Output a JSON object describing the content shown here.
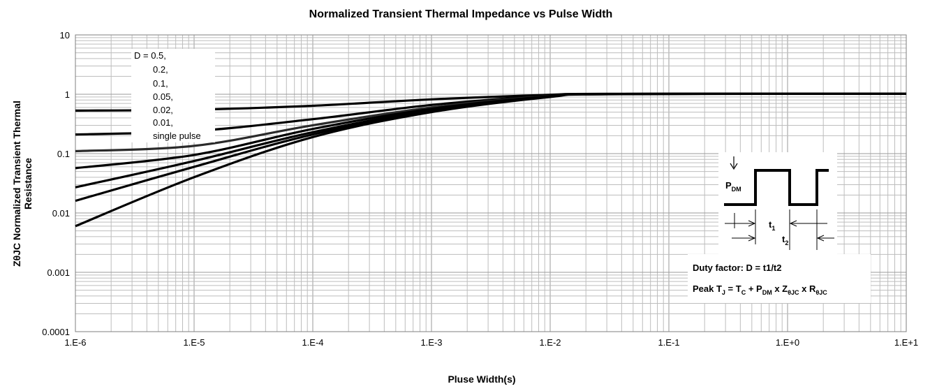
{
  "chart_data": {
    "type": "line",
    "title": "Normalized Transient Thermal Impedance vs Pulse Width",
    "xlabel": "Pluse Width(s)",
    "ylabel": "ZθJC Normalized Transient Thermal Resistance",
    "ylabel_lines": [
      "ZθJC Normalized Transient Thermal",
      "Resistance"
    ],
    "x_scale": "log",
    "y_scale": "log",
    "xlim": [
      1e-06,
      10
    ],
    "ylim": [
      0.0001,
      10
    ],
    "grid": true,
    "x_tick_labels": [
      "1.E-6",
      "1.E-5",
      "1.E-4",
      "1.E-3",
      "1.E-2",
      "1.E-1",
      "1.E+0",
      "1.E+1"
    ],
    "y_tick_labels": [
      "0.0001",
      "0.001",
      "0.01",
      "0.1",
      "1",
      "10"
    ],
    "legend": {
      "placement": "top-left",
      "lines": [
        "D = 0.5,",
        "0.2,",
        "0.1,",
        "0.05,",
        "0.02,",
        "0.01,",
        "single pulse"
      ]
    },
    "series": [
      {
        "name": "D = 0.5",
        "x": [
          1e-06,
          1e-05,
          0.0001,
          0.001,
          0.01,
          0.03,
          10
        ],
        "y": [
          0.53,
          0.55,
          0.64,
          0.82,
          0.98,
          1.02,
          1.02
        ]
      },
      {
        "name": "0.2",
        "x": [
          1e-06,
          1e-05,
          0.0001,
          0.001,
          0.01,
          0.03,
          10
        ],
        "y": [
          0.21,
          0.24,
          0.38,
          0.66,
          0.95,
          1.01,
          1.02
        ]
      },
      {
        "name": "0.1",
        "x": [
          1e-06,
          1e-05,
          0.0001,
          0.001,
          0.01,
          0.03,
          10
        ],
        "y": [
          0.11,
          0.135,
          0.3,
          0.6,
          0.94,
          1.01,
          1.02
        ]
      },
      {
        "name": "0.05",
        "x": [
          1e-06,
          1e-05,
          0.0001,
          0.001,
          0.01,
          0.03,
          10
        ],
        "y": [
          0.057,
          0.095,
          0.26,
          0.57,
          0.93,
          1.01,
          1.02
        ]
      },
      {
        "name": "0.02",
        "x": [
          1e-06,
          1e-05,
          0.0001,
          0.001,
          0.01,
          0.03,
          10
        ],
        "y": [
          0.027,
          0.075,
          0.23,
          0.54,
          0.92,
          1.01,
          1.02
        ]
      },
      {
        "name": "0.01",
        "x": [
          1e-06,
          1e-05,
          0.0001,
          0.001,
          0.01,
          0.03,
          10
        ],
        "y": [
          0.016,
          0.06,
          0.21,
          0.52,
          0.91,
          1.01,
          1.02
        ]
      },
      {
        "name": "single pulse",
        "x": [
          1e-06,
          1e-05,
          0.0001,
          0.001,
          0.01,
          0.03,
          10
        ],
        "y": [
          0.006,
          0.04,
          0.19,
          0.5,
          0.9,
          1.0,
          1.02
        ]
      }
    ],
    "inset": {
      "pdm_label": "P",
      "pdm_sub": "DM",
      "t1_label": "t",
      "t1_sub": "1",
      "t2_label": "t",
      "t2_sub": "2",
      "duty_text": "Duty factor: D = t1/t2",
      "peak_parts": [
        "Peak T",
        "J",
        " = T",
        "C",
        " + P",
        "DM",
        " x Z",
        "θJC",
        " x R",
        "θJC"
      ]
    }
  }
}
